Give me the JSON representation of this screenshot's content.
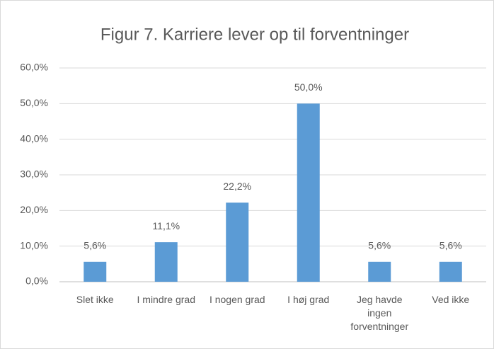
{
  "chart_data": {
    "type": "bar",
    "title": "Figur 7. Karriere lever op til forventninger",
    "categories": [
      "Slet ikke",
      "I mindre grad",
      "I nogen grad",
      "I høj grad",
      "Jeg havde ingen forventninger",
      "Ved ikke"
    ],
    "values": [
      5.6,
      11.1,
      22.2,
      50.0,
      5.6,
      5.6
    ],
    "value_labels": [
      "5,6%",
      "11,1%",
      "22,2%",
      "50,0%",
      "5,6%",
      "5,6%"
    ],
    "color": "#5b9bd5",
    "ylim": [
      0,
      60
    ],
    "yticks": [
      {
        "value": 0,
        "label": "0,0%"
      },
      {
        "value": 10,
        "label": "10,0%"
      },
      {
        "value": 20,
        "label": "20,0%"
      },
      {
        "value": 30,
        "label": "30,0%"
      },
      {
        "value": 40,
        "label": "40,0%"
      },
      {
        "value": 50,
        "label": "50,0%"
      },
      {
        "value": 60,
        "label": "60,0%"
      }
    ],
    "grid": true
  }
}
